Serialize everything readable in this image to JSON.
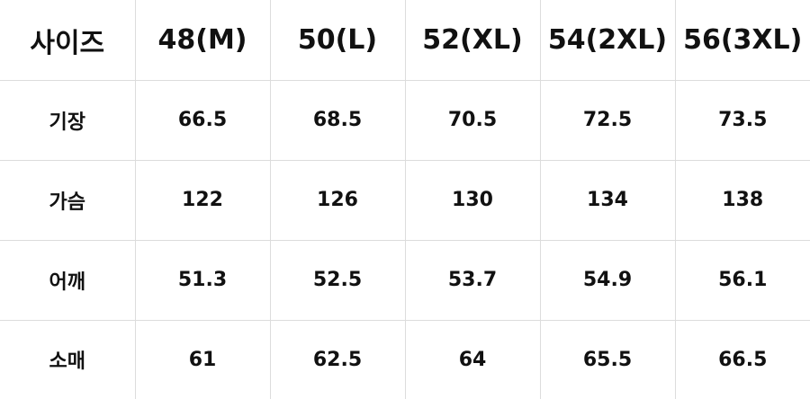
{
  "header": {
    "label": "사이즈",
    "sizes": [
      "48(M)",
      "50(L)",
      "52(XL)",
      "54(2XL)",
      "56(3XL)"
    ]
  },
  "rows": [
    {
      "label": "기장",
      "values": [
        "66.5",
        "68.5",
        "70.5",
        "72.5",
        "73.5"
      ]
    },
    {
      "label": "가슴",
      "values": [
        "122",
        "126",
        "130",
        "134",
        "138"
      ]
    },
    {
      "label": "어깨",
      "values": [
        "51.3",
        "52.5",
        "53.7",
        "54.9",
        "56.1"
      ]
    },
    {
      "label": "소매",
      "values": [
        "61",
        "62.5",
        "64",
        "65.5",
        "66.5"
      ]
    }
  ]
}
